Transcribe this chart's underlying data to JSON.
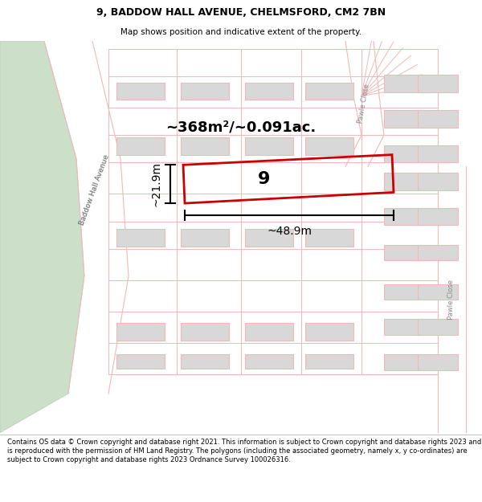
{
  "title": "9, BADDOW HALL AVENUE, CHELMSFORD, CM2 7BN",
  "subtitle": "Map shows position and indicative extent of the property.",
  "footer": "Contains OS data © Crown copyright and database right 2021. This information is subject to Crown copyright and database rights 2023 and is reproduced with the permission of HM Land Registry. The polygons (including the associated geometry, namely x, y co-ordinates) are subject to Crown copyright and database rights 2023 Ordnance Survey 100026316.",
  "area_label": "~368m²/~0.091ac.",
  "width_label": "~48.9m",
  "height_label": "~21.9m",
  "plot_number": "9",
  "road_line_color": "#f0b8b8",
  "building_fill": "#d8d8d8",
  "building_edge": "#f0b8b8",
  "green_fill": "#ccdfc8",
  "green_edge": "#b8ccb4",
  "plot_color": "#cc0000",
  "street_color": "#888888",
  "dim_color": "#000000",
  "bg_color": "#ffffff"
}
